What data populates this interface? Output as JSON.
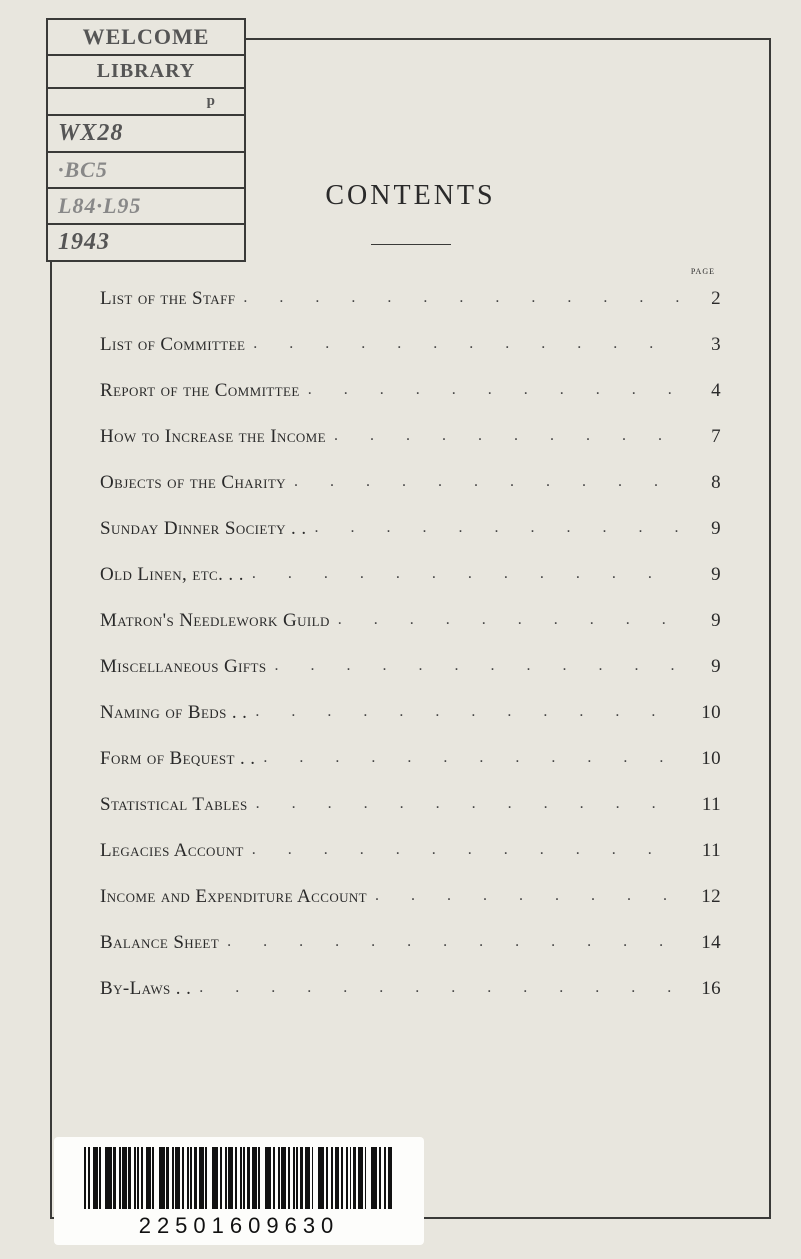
{
  "stamp": {
    "line1": "WELCOME",
    "line2": "LIBRARY",
    "line3": "p",
    "hand1": "WX28",
    "hand2": "·BC5",
    "hand3": "L84·L95",
    "hand4": "1943"
  },
  "title": "CONTENTS",
  "page_label": "page",
  "toc": [
    {
      "label": "List of the Staff",
      "page": "2"
    },
    {
      "label": "List of Committee",
      "page": "3"
    },
    {
      "label": "Report of the Committee",
      "page": "4"
    },
    {
      "label": "How to Increase the Income",
      "page": "7"
    },
    {
      "label": "Objects of the Charity",
      "page": "8"
    },
    {
      "label": "Sunday Dinner Society . .",
      "page": "9"
    },
    {
      "label": "Old Linen, etc. . .",
      "page": "9"
    },
    {
      "label": "Matron's Needlework Guild",
      "page": "9"
    },
    {
      "label": "Miscellaneous Gifts",
      "page": "9"
    },
    {
      "label": "Naming of Beds . .",
      "page": "10"
    },
    {
      "label": "Form of Bequest . .",
      "page": "10"
    },
    {
      "label": "Statistical Tables",
      "page": "11"
    },
    {
      "label": "Legacies Account",
      "page": "11"
    },
    {
      "label": "Income and Expenditure Account",
      "page": "12"
    },
    {
      "label": "Balance Sheet",
      "page": "14"
    },
    {
      "label": "By-Laws  . .",
      "page": "16"
    }
  ],
  "leader_dots": ". . . . . . . . . . . . . . . . . . . . . . . . . . . . . . . .",
  "barcode_number": "22501609630",
  "colors": {
    "background": "#e8e6de",
    "ink": "#2a2a2a",
    "border": "#3a3a38"
  }
}
